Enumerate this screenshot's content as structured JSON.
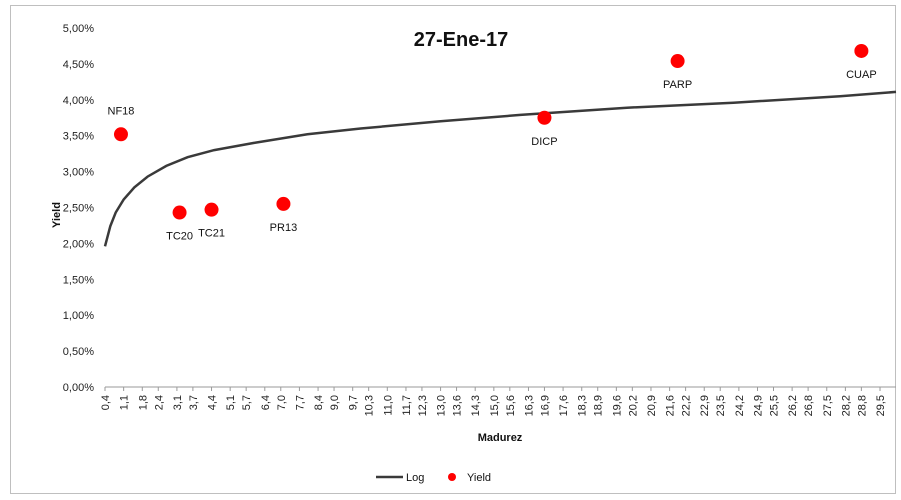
{
  "chart_data": {
    "type": "scatter",
    "title": "27-Ene-17",
    "xlabel": "Madurez",
    "ylabel": "Yield",
    "x_ticks": [
      "0,4",
      "1,1",
      "1,8",
      "2,4",
      "3,1",
      "3,7",
      "4,4",
      "5,1",
      "5,7",
      "6,4",
      "7,0",
      "7,7",
      "8,4",
      "9,0",
      "9,7",
      "10,3",
      "11,0",
      "11,7",
      "12,3",
      "13,0",
      "13,6",
      "14,3",
      "15,0",
      "15,6",
      "16,3",
      "16,9",
      "17,6",
      "18,3",
      "18,9",
      "19,6",
      "20,2",
      "20,9",
      "21,6",
      "22,2",
      "22,9",
      "23,5",
      "24,2",
      "24,9",
      "25,5",
      "26,2",
      "26,8",
      "27,5",
      "28,2",
      "28,8",
      "29,5"
    ],
    "xlim": [
      0.4,
      30.1
    ],
    "y_ticks": [
      "0,00%",
      "0,50%",
      "1,00%",
      "1,50%",
      "2,00%",
      "2,50%",
      "3,00%",
      "3,50%",
      "4,00%",
      "4,50%",
      "5,00%"
    ],
    "ylim": [
      0,
      5
    ],
    "series": [
      {
        "name": "Yield",
        "kind": "scatter",
        "color": "#ff0000",
        "points": [
          {
            "label": "NF18",
            "x": 1.0,
            "y": 3.52
          },
          {
            "label": "TC20",
            "x": 3.2,
            "y": 2.43
          },
          {
            "label": "TC21",
            "x": 4.4,
            "y": 2.47
          },
          {
            "label": "PR13",
            "x": 7.1,
            "y": 2.55
          },
          {
            "label": "DICP",
            "x": 16.9,
            "y": 3.75
          },
          {
            "label": "PARP",
            "x": 21.9,
            "y": 4.54
          },
          {
            "label": "CUAP",
            "x": 28.8,
            "y": 4.68
          }
        ]
      },
      {
        "name": "Log",
        "kind": "line",
        "color": "#3a3a3a",
        "x": [
          0.4,
          0.6,
          0.8,
          1.1,
          1.5,
          2.0,
          2.7,
          3.5,
          4.5,
          6.0,
          8.0,
          10.0,
          13.0,
          16.0,
          20.0,
          24.0,
          28.0,
          30.1
        ],
        "y": [
          1.96,
          2.24,
          2.43,
          2.61,
          2.78,
          2.93,
          3.08,
          3.2,
          3.3,
          3.4,
          3.52,
          3.6,
          3.7,
          3.79,
          3.89,
          3.96,
          4.05,
          4.11
        ]
      }
    ],
    "legend": [
      "Log",
      "Yield"
    ],
    "legend_position": "bottom",
    "grid": false
  }
}
